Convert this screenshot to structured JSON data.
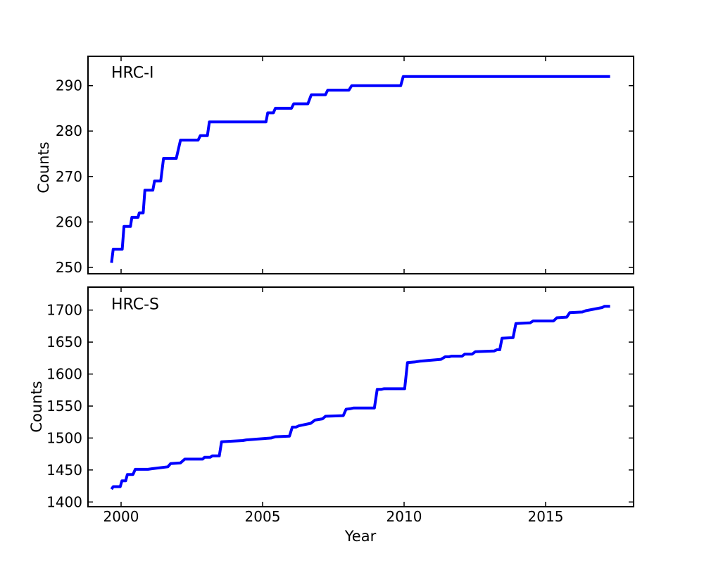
{
  "figure": {
    "background": "#ffffff",
    "accent_color": "#0000ff"
  },
  "chart_data": [
    {
      "id": "hrc-i",
      "type": "line",
      "title": "HRC-I",
      "xlabel": "",
      "ylabel": "Counts",
      "xlim": [
        1998.83,
        2018.11
      ],
      "ylim": [
        248.6,
        296.45
      ],
      "xticks": [
        2000,
        2005,
        2010,
        2015
      ],
      "show_xtick_labels": false,
      "yticks": [
        250,
        260,
        270,
        280,
        290
      ],
      "grid": false,
      "legend_position": "none",
      "line": {
        "color": "#0000ff",
        "width": 4
      },
      "series": [
        {
          "name": "HRC-I",
          "points": [
            [
              1999.66,
              251
            ],
            [
              1999.72,
              254
            ],
            [
              2000.04,
              254
            ],
            [
              2000.1,
              259
            ],
            [
              2000.33,
              259
            ],
            [
              2000.38,
              261
            ],
            [
              2000.6,
              261
            ],
            [
              2000.64,
              262
            ],
            [
              2000.78,
              262
            ],
            [
              2000.84,
              267
            ],
            [
              2001.12,
              267
            ],
            [
              2001.18,
              269
            ],
            [
              2001.4,
              269
            ],
            [
              2001.5,
              274
            ],
            [
              2001.95,
              274
            ],
            [
              2002.1,
              278
            ],
            [
              2002.72,
              278
            ],
            [
              2002.8,
              279
            ],
            [
              2003.05,
              279
            ],
            [
              2003.12,
              282
            ],
            [
              2005.12,
              282
            ],
            [
              2005.18,
              284
            ],
            [
              2005.38,
              284
            ],
            [
              2005.45,
              285
            ],
            [
              2006.02,
              285
            ],
            [
              2006.1,
              286
            ],
            [
              2006.6,
              286
            ],
            [
              2006.72,
              288
            ],
            [
              2007.22,
              288
            ],
            [
              2007.3,
              289
            ],
            [
              2008.05,
              289
            ],
            [
              2008.15,
              290
            ],
            [
              2009.88,
              290
            ],
            [
              2009.97,
              292
            ],
            [
              2017.28,
              292
            ]
          ]
        }
      ]
    },
    {
      "id": "hrc-s",
      "type": "line",
      "title": "HRC-S",
      "xlabel": "Year",
      "ylabel": "Counts",
      "xlim": [
        1998.83,
        2018.11
      ],
      "ylim": [
        1392.6,
        1735.9
      ],
      "xticks": [
        2000,
        2005,
        2010,
        2015
      ],
      "show_xtick_labels": true,
      "yticks": [
        1400,
        1450,
        1500,
        1550,
        1600,
        1650,
        1700
      ],
      "grid": false,
      "legend_position": "none",
      "line": {
        "color": "#0000ff",
        "width": 4
      },
      "series": [
        {
          "name": "HRC-S",
          "points": [
            [
              1999.66,
              1420
            ],
            [
              1999.72,
              1424
            ],
            [
              1999.97,
              1424
            ],
            [
              2000.03,
              1433
            ],
            [
              2000.16,
              1433
            ],
            [
              2000.22,
              1443
            ],
            [
              2000.42,
              1443
            ],
            [
              2000.5,
              1451
            ],
            [
              2000.95,
              1451
            ],
            [
              2001.1,
              1452
            ],
            [
              2001.65,
              1455
            ],
            [
              2001.75,
              1460
            ],
            [
              2002.1,
              1461
            ],
            [
              2002.25,
              1467
            ],
            [
              2002.88,
              1467
            ],
            [
              2002.95,
              1470
            ],
            [
              2003.15,
              1470
            ],
            [
              2003.22,
              1472
            ],
            [
              2003.47,
              1472
            ],
            [
              2003.55,
              1494
            ],
            [
              2004.3,
              1496
            ],
            [
              2004.42,
              1497
            ],
            [
              2005.3,
              1500
            ],
            [
              2005.45,
              1502
            ],
            [
              2005.95,
              1503
            ],
            [
              2006.05,
              1517
            ],
            [
              2006.18,
              1517
            ],
            [
              2006.28,
              1519
            ],
            [
              2006.7,
              1523
            ],
            [
              2006.85,
              1528
            ],
            [
              2007.12,
              1530
            ],
            [
              2007.22,
              1534
            ],
            [
              2007.85,
              1535
            ],
            [
              2007.95,
              1545
            ],
            [
              2008.12,
              1546
            ],
            [
              2008.22,
              1547
            ],
            [
              2008.95,
              1547
            ],
            [
              2009.05,
              1576
            ],
            [
              2009.18,
              1576
            ],
            [
              2009.28,
              1577
            ],
            [
              2010.02,
              1577
            ],
            [
              2010.12,
              1618
            ],
            [
              2010.4,
              1619
            ],
            [
              2010.55,
              1620
            ],
            [
              2011.3,
              1623
            ],
            [
              2011.45,
              1627
            ],
            [
              2011.58,
              1627
            ],
            [
              2011.68,
              1628
            ],
            [
              2012.05,
              1628
            ],
            [
              2012.14,
              1631
            ],
            [
              2012.4,
              1631
            ],
            [
              2012.52,
              1635
            ],
            [
              2013.18,
              1636
            ],
            [
              2013.28,
              1638
            ],
            [
              2013.38,
              1638
            ],
            [
              2013.46,
              1656
            ],
            [
              2013.85,
              1657
            ],
            [
              2013.95,
              1679
            ],
            [
              2014.45,
              1680
            ],
            [
              2014.56,
              1683
            ],
            [
              2015.28,
              1683
            ],
            [
              2015.4,
              1688
            ],
            [
              2015.75,
              1689
            ],
            [
              2015.85,
              1696
            ],
            [
              2016.3,
              1697
            ],
            [
              2016.42,
              1699
            ],
            [
              2017.0,
              1704
            ],
            [
              2017.08,
              1706
            ],
            [
              2017.28,
              1706
            ]
          ]
        }
      ]
    }
  ]
}
